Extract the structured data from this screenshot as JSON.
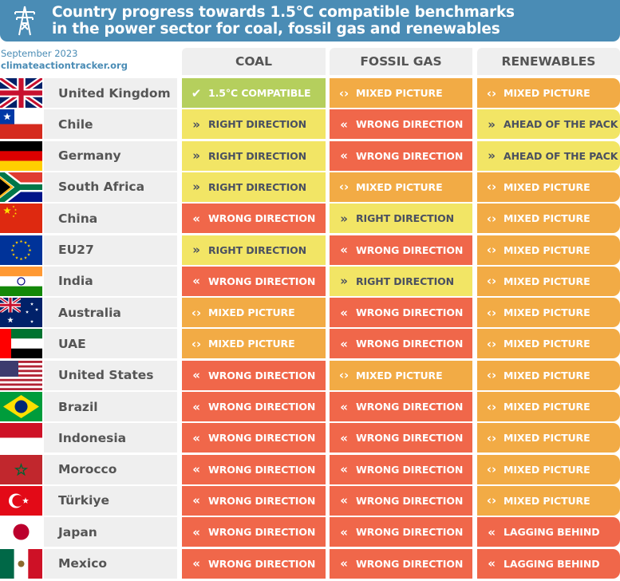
{
  "header": {
    "title_line1": "Country progress towards 1.5°C compatible benchmarks",
    "title_line2": "in the power sector for coal, fossil gas and renewables",
    "date": "September 2023",
    "source": "climateactiontracker.org"
  },
  "columns": [
    "COAL",
    "FOSSIL GAS",
    "RENEWABLES"
  ],
  "ratings": {
    "compatible": {
      "label": "1.5°C COMPATIBLE",
      "icon": "check-icon",
      "color": "#b5cf5d",
      "text": "#ffffff"
    },
    "right": {
      "label": "RIGHT DIRECTION",
      "icon": "double-chevron-right-icon",
      "color": "#f2e565",
      "text": "#4a5060"
    },
    "ahead": {
      "label": "AHEAD OF THE PACK",
      "icon": "double-chevron-right-icon",
      "color": "#f2e565",
      "text": "#4a5060"
    },
    "mixed": {
      "label": "MIXED PICTURE",
      "icon": "chevrons-left-right-icon",
      "color": "#f2ab45",
      "text": "#ffffff"
    },
    "wrong": {
      "label": "WRONG DIRECTION",
      "icon": "double-chevron-left-icon",
      "color": "#f0674a",
      "text": "#ffffff"
    },
    "lagging": {
      "label": "LAGGING BEHIND",
      "icon": "double-chevron-left-icon",
      "color": "#f0674a",
      "text": "#ffffff"
    }
  },
  "rows": [
    {
      "country": "United Kingdom",
      "flag": "uk",
      "coal": "compatible",
      "gas": "mixed",
      "ren": "mixed"
    },
    {
      "country": "Chile",
      "flag": "cl",
      "coal": "right",
      "gas": "wrong",
      "ren": "ahead"
    },
    {
      "country": "Germany",
      "flag": "de",
      "coal": "right",
      "gas": "wrong",
      "ren": "ahead"
    },
    {
      "country": "South Africa",
      "flag": "za",
      "coal": "right",
      "gas": "mixed",
      "ren": "mixed"
    },
    {
      "country": "China",
      "flag": "cn",
      "coal": "wrong",
      "gas": "right",
      "ren": "mixed"
    },
    {
      "country": "EU27",
      "flag": "eu",
      "coal": "right",
      "gas": "wrong",
      "ren": "mixed"
    },
    {
      "country": "India",
      "flag": "in",
      "coal": "wrong",
      "gas": "right",
      "ren": "mixed"
    },
    {
      "country": "Australia",
      "flag": "au",
      "coal": "mixed",
      "gas": "wrong",
      "ren": "mixed"
    },
    {
      "country": "UAE",
      "flag": "ae",
      "coal": "mixed",
      "gas": "wrong",
      "ren": "mixed"
    },
    {
      "country": "United States",
      "flag": "us",
      "coal": "wrong",
      "gas": "mixed",
      "ren": "mixed"
    },
    {
      "country": "Brazil",
      "flag": "br",
      "coal": "wrong",
      "gas": "wrong",
      "ren": "mixed"
    },
    {
      "country": "Indonesia",
      "flag": "id",
      "coal": "wrong",
      "gas": "wrong",
      "ren": "mixed"
    },
    {
      "country": "Morocco",
      "flag": "ma",
      "coal": "wrong",
      "gas": "wrong",
      "ren": "mixed"
    },
    {
      "country": "Türkiye",
      "flag": "tr",
      "coal": "wrong",
      "gas": "wrong",
      "ren": "mixed"
    },
    {
      "country": "Japan",
      "flag": "jp",
      "coal": "wrong",
      "gas": "wrong",
      "ren": "lagging"
    },
    {
      "country": "Mexico",
      "flag": "mx",
      "coal": "wrong",
      "gas": "wrong",
      "ren": "lagging"
    }
  ],
  "chart_data": {
    "type": "table",
    "title": "Country progress towards 1.5°C compatible benchmarks in the power sector for coal, fossil gas and renewables",
    "columns": [
      "COAL",
      "FOSSIL GAS",
      "RENEWABLES"
    ]
  }
}
